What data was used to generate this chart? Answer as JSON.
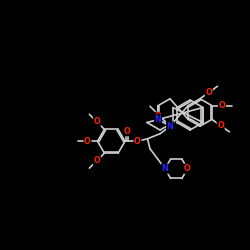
{
  "bg": "#000000",
  "wc": "#cccccc",
  "nc": "#2222ff",
  "oc": "#ff2200",
  "lw": 1.2,
  "fs": 5.8,
  "xlim": [
    0,
    100
  ],
  "ylim": [
    0,
    100
  ]
}
